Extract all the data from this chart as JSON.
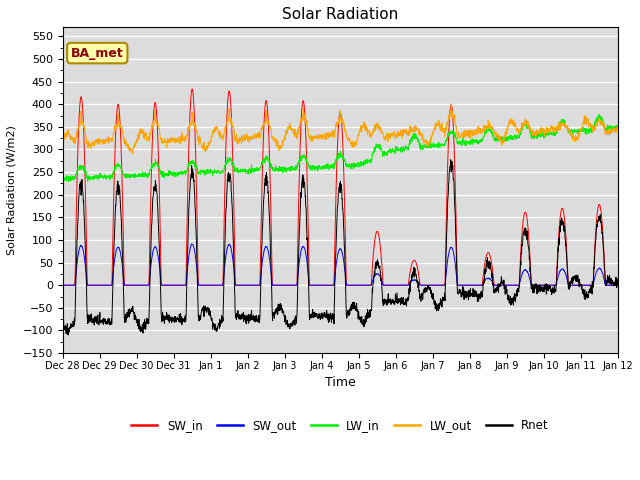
{
  "title": "Solar Radiation",
  "xlabel": "Time",
  "ylabel": "Solar Radiation (W/m2)",
  "ylim": [
    -150,
    570
  ],
  "yticks": [
    -150,
    -100,
    -50,
    0,
    50,
    100,
    150,
    200,
    250,
    300,
    350,
    400,
    450,
    500,
    550
  ],
  "plot_bg_color": "#dcdcdc",
  "fig_bg_color": "#ffffff",
  "grid_color": "#ffffff",
  "colors": {
    "SW_in": "#ff0000",
    "SW_out": "#0000ff",
    "LW_in": "#00ee00",
    "LW_out": "#ffa500",
    "Rnet": "#000000"
  },
  "legend_items": [
    "SW_in",
    "SW_out",
    "LW_in",
    "LW_out",
    "Rnet"
  ],
  "annotation_text": "BA_met",
  "n_days": 15,
  "points_per_day": 144,
  "day_peaks_SW": [
    490,
    470,
    475,
    510,
    505,
    480,
    480,
    450,
    140,
    65,
    470,
    85,
    190,
    200,
    210
  ],
  "rises": [
    0.335,
    0.335,
    0.335,
    0.335,
    0.335,
    0.335,
    0.335,
    0.335,
    0.34,
    0.34,
    0.335,
    0.34,
    0.337,
    0.337,
    0.337
  ],
  "sets": [
    0.665,
    0.665,
    0.665,
    0.665,
    0.665,
    0.665,
    0.665,
    0.665,
    0.66,
    0.66,
    0.665,
    0.66,
    0.663,
    0.663,
    0.663
  ],
  "tick_labels": [
    "Dec 28",
    "Dec 29",
    "Dec 30",
    "Dec 31",
    "Jan 1",
    "Jan 2",
    "Jan 3",
    "Jan 4",
    "Jan 5",
    "Jan 6",
    "Jan 7",
    "Jan 8",
    "Jan 9",
    "Jan 10",
    "Jan 11",
    "Jan 12"
  ]
}
